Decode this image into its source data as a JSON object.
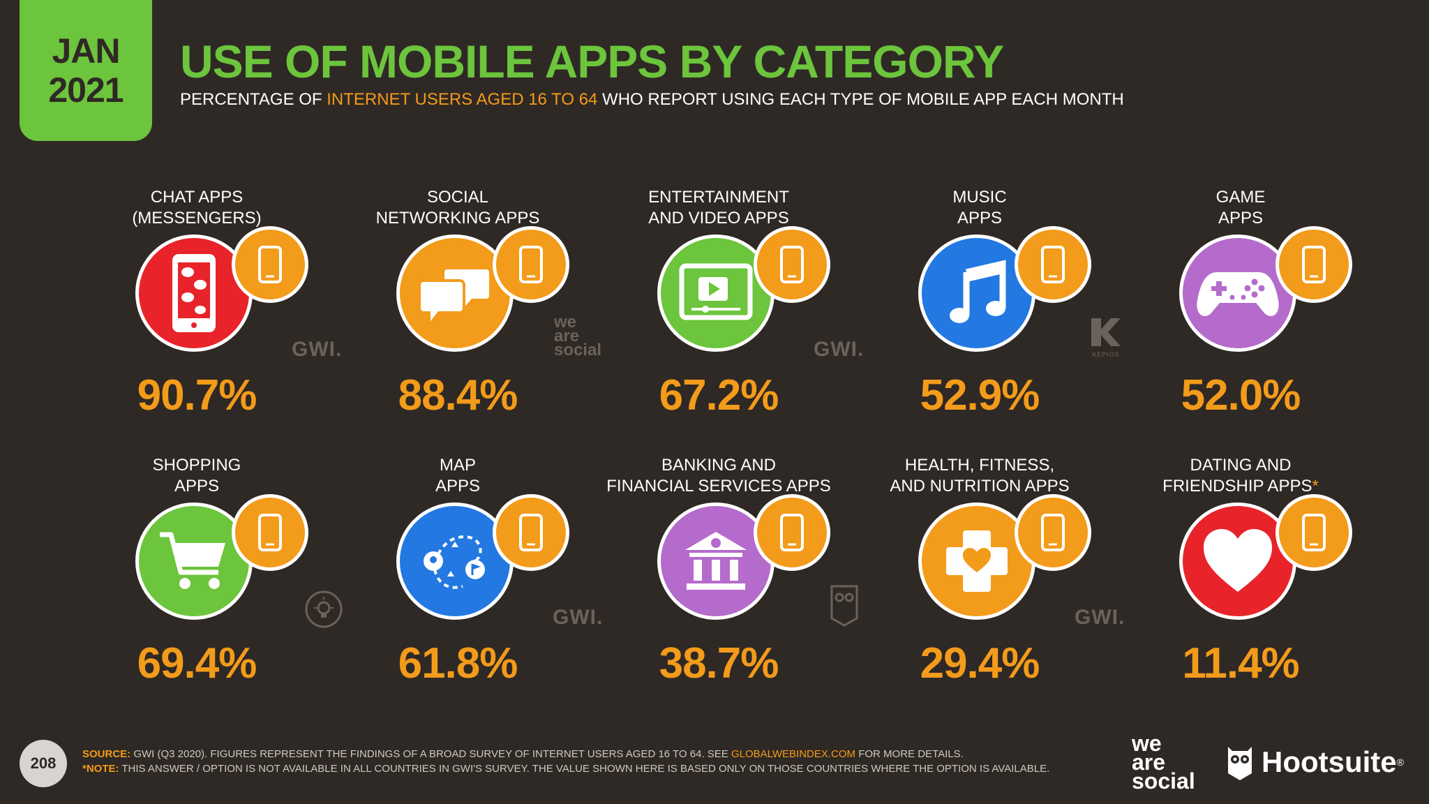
{
  "header": {
    "badge_month": "JAN",
    "badge_year": "2021",
    "title": "USE OF MOBILE APPS BY CATEGORY",
    "subtitle_pre": "PERCENTAGE OF ",
    "subtitle_highlight": "INTERNET USERS AGED 16 TO 64",
    "subtitle_post": " WHO REPORT USING EACH TYPE OF MOBILE APP EACH MONTH"
  },
  "categories": [
    {
      "line1": "CHAT APPS",
      "line2": "(MESSENGERS)",
      "value": "90.7%",
      "icon": "chat-icon",
      "color": "#e8232a"
    },
    {
      "line1": "SOCIAL",
      "line2": "NETWORKING APPS",
      "value": "88.4%",
      "icon": "speech-bubbles-icon",
      "color": "#f39b1a"
    },
    {
      "line1": "ENTERTAINMENT",
      "line2": "AND VIDEO APPS",
      "value": "67.2%",
      "icon": "video-player-icon",
      "color": "#6cc53c"
    },
    {
      "line1": "MUSIC",
      "line2": "APPS",
      "value": "52.9%",
      "icon": "music-note-icon",
      "color": "#2378e1"
    },
    {
      "line1": "GAME",
      "line2": "APPS",
      "value": "52.0%",
      "icon": "gamepad-icon",
      "color": "#b46bcb"
    },
    {
      "line1": "SHOPPING",
      "line2": "APPS",
      "value": "69.4%",
      "icon": "shopping-cart-icon",
      "color": "#6cc53c"
    },
    {
      "line1": "MAP",
      "line2": "APPS",
      "value": "61.8%",
      "icon": "map-route-icon",
      "color": "#2378e1"
    },
    {
      "line1": "BANKING AND",
      "line2": "FINANCIAL SERVICES APPS",
      "value": "38.7%",
      "icon": "bank-icon",
      "color": "#b46bcb"
    },
    {
      "line1": "HEALTH, FITNESS,",
      "line2": "AND NUTRITION APPS",
      "value": "29.4%",
      "icon": "medical-cross-heart-icon",
      "color": "#f39b1a"
    },
    {
      "line1": "DATING AND",
      "line2": "FRIENDSHIP APPS",
      "line2_mark": "*",
      "value": "11.4%",
      "icon": "heart-icon",
      "color": "#e8232a"
    }
  ],
  "watermarks": {
    "gwi": "GWI.",
    "we": "we",
    "are": "are",
    "social": "social",
    "kepios": "KEPIOS"
  },
  "footer": {
    "page_number": "208",
    "source_label": "SOURCE:",
    "source_pre": " GWI (Q3 2020). FIGURES REPRESENT THE FINDINGS OF A BROAD SURVEY OF INTERNET USERS AGED 16 TO 64. SEE ",
    "source_link": "GLOBALWEBINDEX.COM",
    "source_post": " FOR MORE DETAILS.",
    "note_label": "*NOTE:",
    "note_text": " THIS ANSWER / OPTION IS NOT AVAILABLE IN ALL COUNTRIES IN GWI'S SURVEY. THE VALUE SHOWN HERE IS BASED ONLY ON THOSE COUNTRIES WHERE THE OPTION IS AVAILABLE."
  },
  "brands": {
    "we": "we",
    "are": "are",
    "social": "social",
    "hootsuite": "Hootsuite",
    "hootsuite_mark": "®"
  },
  "colors": {
    "background": "#2f2925",
    "accent_green": "#6cc53c",
    "accent_orange": "#f39b1a"
  }
}
